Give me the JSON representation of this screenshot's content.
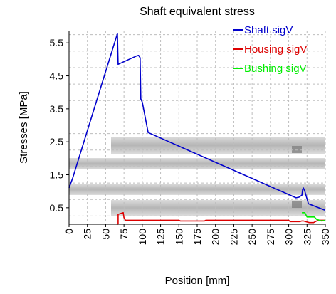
{
  "chart_data": {
    "type": "line",
    "title": "Shaft equivalent stress",
    "xlabel": "Position [mm]",
    "ylabel": "Stresses [MPa]",
    "xlim": [
      0,
      350
    ],
    "ylim": [
      0,
      5.85
    ],
    "x_ticks": [
      "0",
      "25",
      "50",
      "75",
      "100",
      "125",
      "150",
      "175",
      "200",
      "225",
      "250",
      "275",
      "300",
      "325",
      "350"
    ],
    "y_ticks": [
      "0.5",
      "1.5",
      "2.5",
      "3.5",
      "4.5",
      "5.5"
    ],
    "grid": true,
    "legend_position": "top-right",
    "series": [
      {
        "name": "Shaft sigV",
        "color": "#0000cc",
        "x": [
          0,
          5,
          66,
          67,
          92,
          95,
          97,
          98,
          100,
          108,
          310,
          314,
          318,
          319,
          320,
          322,
          327,
          350
        ],
        "y": [
          1.1,
          1.4,
          5.78,
          4.85,
          5.1,
          5.12,
          5.05,
          3.8,
          3.7,
          2.78,
          0.8,
          0.82,
          0.88,
          1.05,
          1.1,
          1.0,
          0.62,
          0.42
        ]
      },
      {
        "name": "Housing sigV",
        "color": "#dd0000",
        "x": [
          65,
          67,
          67,
          74,
          75,
          77,
          90,
          150,
          152,
          185,
          187,
          300,
          302,
          315,
          318,
          320,
          328,
          334,
          340,
          350
        ],
        "y": [
          0,
          0,
          0.3,
          0.35,
          0.2,
          0.12,
          0.12,
          0.12,
          0.1,
          0.1,
          0.12,
          0.12,
          0.08,
          0.08,
          0.1,
          0.1,
          0.05,
          0.05,
          0.12,
          0.12
        ]
      },
      {
        "name": "Bushing sigV",
        "color": "#00ee00",
        "x": [
          318,
          322,
          325,
          335,
          338,
          345,
          350
        ],
        "y": [
          0.35,
          0.35,
          0.22,
          0.22,
          0.15,
          0.1,
          0.12
        ]
      }
    ]
  }
}
